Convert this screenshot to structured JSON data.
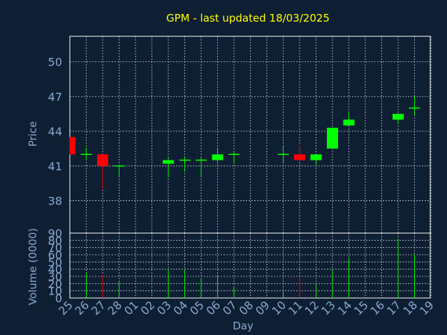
{
  "title": "GPM - last updated 18/03/2025",
  "colors": {
    "background": "#0e1f33",
    "title": "#ffff00",
    "axis_text": "#8aa9d0",
    "grid": "#ffffff",
    "up": "#00ff00",
    "down": "#ff0000"
  },
  "chart_data": [
    {
      "type": "candlestick",
      "title": "GPM - last updated 18/03/2025",
      "ylabel": "Price",
      "ylim": [
        35.2,
        52.2
      ],
      "yticks": [
        38,
        41,
        44,
        47,
        50
      ],
      "grid": true,
      "categories": [
        "25",
        "26",
        "27",
        "28",
        "01",
        "02",
        "03",
        "04",
        "05",
        "06",
        "07",
        "08",
        "09",
        "10",
        "11",
        "12",
        "13",
        "14",
        "15",
        "16",
        "17",
        "18",
        "19"
      ],
      "candles": [
        {
          "x": "25",
          "open": 43.5,
          "high": 43.5,
          "low": 42.0,
          "close": 42.0
        },
        {
          "x": "26",
          "open": 42.0,
          "high": 42.6,
          "low": 41.5,
          "close": 42.0
        },
        {
          "x": "27",
          "open": 42.0,
          "high": 42.0,
          "low": 39.0,
          "close": 41.0
        },
        {
          "x": "28",
          "open": 41.0,
          "high": 41.0,
          "low": 40.0,
          "close": 41.0
        },
        {
          "x": "03",
          "open": 41.2,
          "high": 41.8,
          "low": 40.0,
          "close": 41.5
        },
        {
          "x": "04",
          "open": 41.5,
          "high": 41.8,
          "low": 40.5,
          "close": 41.5
        },
        {
          "x": "05",
          "open": 41.5,
          "high": 41.7,
          "low": 40.0,
          "close": 41.5
        },
        {
          "x": "06",
          "open": 41.5,
          "high": 42.6,
          "low": 41.2,
          "close": 42.0
        },
        {
          "x": "07",
          "open": 42.0,
          "high": 42.2,
          "low": 41.2,
          "close": 42.0
        },
        {
          "x": "10",
          "open": 42.0,
          "high": 42.8,
          "low": 41.3,
          "close": 42.0
        },
        {
          "x": "11",
          "open": 42.0,
          "high": 42.8,
          "low": 41.5,
          "close": 41.5
        },
        {
          "x": "12",
          "open": 41.5,
          "high": 42.0,
          "low": 41.0,
          "close": 42.0
        },
        {
          "x": "13",
          "open": 42.5,
          "high": 44.3,
          "low": 42.5,
          "close": 44.3
        },
        {
          "x": "14",
          "open": 44.5,
          "high": 45.7,
          "low": 44.5,
          "close": 45.0
        },
        {
          "x": "17",
          "open": 45.0,
          "high": 45.5,
          "low": 44.6,
          "close": 45.5
        },
        {
          "x": "18",
          "open": 46.0,
          "high": 47.0,
          "low": 45.4,
          "close": 46.0
        }
      ]
    },
    {
      "type": "bar",
      "ylabel": "Volume (0000)",
      "xlabel": "Day",
      "ylim": [
        0,
        90
      ],
      "yticks": [
        0,
        10,
        20,
        30,
        40,
        50,
        60,
        70,
        80,
        90
      ],
      "grid": true,
      "categories": [
        "25",
        "26",
        "27",
        "28",
        "01",
        "02",
        "03",
        "04",
        "05",
        "06",
        "07",
        "08",
        "09",
        "10",
        "11",
        "12",
        "13",
        "14",
        "15",
        "16",
        "17",
        "18",
        "19"
      ],
      "values": [
        {
          "x": "26",
          "value": 35,
          "direction": "up"
        },
        {
          "x": "27",
          "value": 32,
          "direction": "down"
        },
        {
          "x": "28",
          "value": 22,
          "direction": "up"
        },
        {
          "x": "03",
          "value": 40,
          "direction": "up"
        },
        {
          "x": "04",
          "value": 40,
          "direction": "up"
        },
        {
          "x": "05",
          "value": 28,
          "direction": "up"
        },
        {
          "x": "06",
          "value": 32,
          "direction": "up"
        },
        {
          "x": "07",
          "value": 15,
          "direction": "up"
        },
        {
          "x": "10",
          "value": 8,
          "direction": "up"
        },
        {
          "x": "11",
          "value": 28,
          "direction": "down"
        },
        {
          "x": "12",
          "value": 18,
          "direction": "up"
        },
        {
          "x": "13",
          "value": 40,
          "direction": "up"
        },
        {
          "x": "14",
          "value": 56,
          "direction": "up"
        },
        {
          "x": "17",
          "value": 82,
          "direction": "up"
        },
        {
          "x": "18",
          "value": 60,
          "direction": "up"
        }
      ]
    }
  ]
}
